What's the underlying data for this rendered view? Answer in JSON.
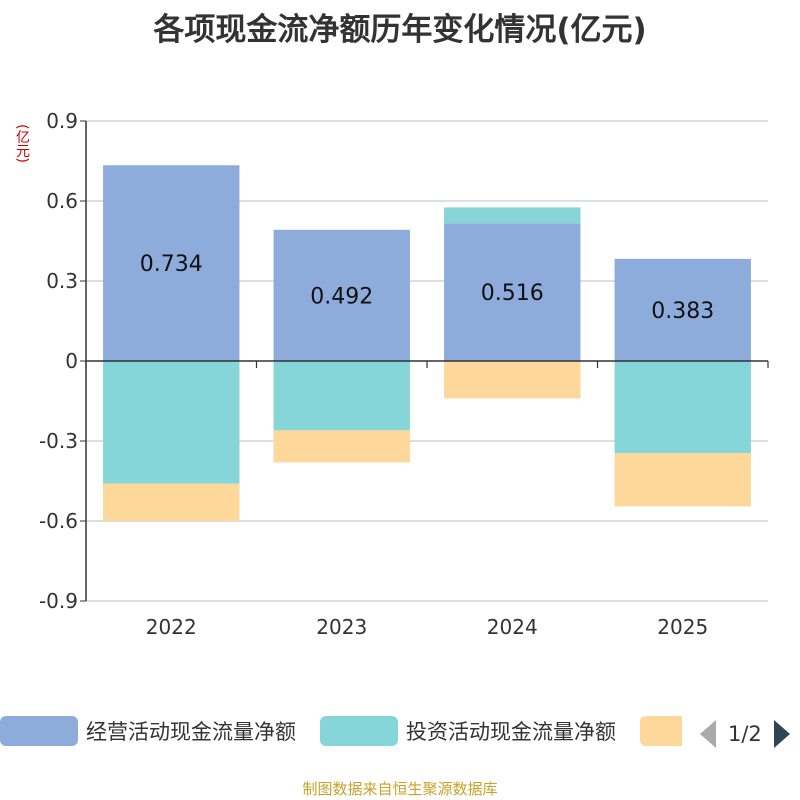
{
  "chart_data": {
    "type": "bar",
    "stacked": true,
    "title": "各项现金流净额历年变化情况(亿元)",
    "ylabel": "(亿元)",
    "xlabel": "",
    "categories": [
      "2022",
      "2023",
      "2024",
      "2025"
    ],
    "ylim": [
      -0.9,
      0.9
    ],
    "yticks": [
      0.9,
      0.6,
      0.3,
      0,
      -0.3,
      -0.6,
      -0.9
    ],
    "ytick_labels": [
      "0.9",
      "0.6",
      "0.3",
      "0",
      "-0.3",
      "-0.6",
      "-0.9"
    ],
    "grid": true,
    "series": [
      {
        "name": "经营活动现金流量净额",
        "color": "#8eacdb",
        "values": [
          0.734,
          0.492,
          0.516,
          0.383
        ],
        "labels": [
          "0.734",
          "0.492",
          "0.516",
          "0.383"
        ]
      },
      {
        "name": "投资活动现金流量净额",
        "color": "#86d5d8",
        "values": [
          -0.46,
          -0.26,
          0.06,
          -0.345
        ]
      },
      {
        "name": "",
        "color": "#fdd89a",
        "values": [
          -0.14,
          -0.12,
          -0.14,
          -0.2
        ]
      }
    ]
  },
  "legend": {
    "page": "1/2"
  },
  "source": "制图数据来自恒生聚源数据库"
}
